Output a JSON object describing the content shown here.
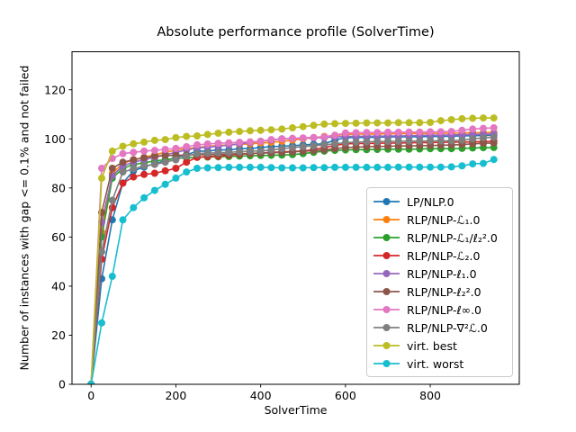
{
  "title": "Absolute performance profile (SolverTime)",
  "xlabel": "SolverTime",
  "ylabel": "Number of instances with gap <= 0.1% and not failed",
  "chart_data": {
    "type": "line",
    "marker": "circle",
    "grid": false,
    "legend_position": "lower right",
    "xlim": [
      -45,
      1010
    ],
    "ylim": [
      0,
      135.5
    ],
    "x_ticks": [
      0,
      200,
      400,
      600,
      800
    ],
    "y_ticks": [
      0,
      20,
      40,
      60,
      80,
      100,
      120
    ],
    "x": [
      0,
      25,
      50,
      75,
      100,
      125,
      150,
      175,
      200,
      225,
      250,
      275,
      300,
      325,
      350,
      375,
      400,
      425,
      450,
      475,
      500,
      525,
      550,
      575,
      600,
      625,
      650,
      675,
      700,
      725,
      750,
      775,
      800,
      825,
      850,
      875,
      900,
      925,
      950
    ],
    "series": [
      {
        "name": "LP/NLP.0",
        "color": "#1f77b4",
        "values": [
          0,
          43,
          67,
          82,
          87,
          88.5,
          90,
          91,
          92.5,
          93.5,
          95,
          95,
          95.5,
          95.5,
          96,
          96,
          96.5,
          96.8,
          97,
          97.2,
          97.5,
          97.8,
          98,
          99.5,
          100.5,
          100.6,
          100.6,
          100.7,
          100.8,
          100.8,
          100.9,
          100.9,
          101,
          101,
          101.1,
          101.2,
          101.3,
          101.4,
          101.5
        ]
      },
      {
        "name": "RLP/NLP-ℒ₁.0",
        "color": "#ff7f0e",
        "values": [
          0,
          62,
          86,
          90,
          91.5,
          92.5,
          93.5,
          94.5,
          95.5,
          96,
          96.5,
          97,
          97.3,
          97.6,
          97.8,
          98,
          98.3,
          98.6,
          99,
          99.5,
          100,
          100.5,
          101,
          101.4,
          101.8,
          101.9,
          102,
          102,
          102.1,
          102.1,
          102.2,
          102.2,
          102.2,
          102.3,
          102.3,
          102.4,
          102.5,
          102.5,
          102.6
        ]
      },
      {
        "name": "RLP/NLP-ℒ₁/ℓ₂².0",
        "color": "#2ca02c",
        "values": [
          0,
          60,
          84,
          88,
          89.5,
          90.3,
          91,
          91.5,
          92,
          92.3,
          92.5,
          92.6,
          92.7,
          92.8,
          93,
          93.1,
          93.2,
          93.3,
          93.4,
          93.6,
          94,
          94.5,
          95,
          95.3,
          95.5,
          95.6,
          95.6,
          95.7,
          95.8,
          95.8,
          95.8,
          95.9,
          96,
          96,
          96,
          96.1,
          96.3,
          96.4,
          96.5
        ]
      },
      {
        "name": "RLP/NLP-ℒ₂.0",
        "color": "#d62728",
        "values": [
          0,
          51,
          72,
          82,
          84.5,
          85.5,
          86,
          87,
          88,
          90.5,
          92.5,
          92.8,
          93,
          93.4,
          93.7,
          94,
          94.2,
          94.5,
          94.7,
          94.9,
          95,
          95.7,
          96.5,
          97.3,
          98,
          98.1,
          98.1,
          98.2,
          98.3,
          98.3,
          98.4,
          98.5,
          98.5,
          98.6,
          98.7,
          98.7,
          98.8,
          98.9,
          99
        ]
      },
      {
        "name": "RLP/NLP-ℓ₁.0",
        "color": "#9467bd",
        "values": [
          0,
          66,
          85,
          89,
          90.5,
          91.5,
          92.5,
          93.5,
          94.5,
          95.5,
          96.3,
          96.6,
          97,
          97.5,
          98,
          98.5,
          99,
          99.5,
          100,
          100.2,
          100.3,
          100.4,
          100.5,
          100.8,
          101,
          101,
          101.1,
          101.1,
          101.2,
          101.2,
          101.3,
          101.4,
          101.5,
          101.5,
          101.6,
          101.7,
          101.8,
          101.9,
          102
        ]
      },
      {
        "name": "RLP/NLP-ℓ₂².0",
        "color": "#8c564b",
        "values": [
          0,
          70,
          88,
          90.5,
          91.5,
          92.3,
          93,
          93.2,
          93.3,
          93.4,
          93.5,
          93.6,
          93.7,
          93.8,
          94,
          94.1,
          94.2,
          94.3,
          94.5,
          94.7,
          95,
          95.2,
          95.5,
          96,
          96.5,
          96.6,
          96.8,
          96.9,
          97,
          97.1,
          97.1,
          97.2,
          97.3,
          97.4,
          97.5,
          97.7,
          98,
          98.2,
          98.3
        ]
      },
      {
        "name": "RLP/NLP-ℓ∞.0",
        "color": "#e377c2",
        "values": [
          0,
          88,
          92,
          94,
          94.5,
          95,
          95.3,
          95.7,
          96.1,
          96.8,
          97.6,
          97.9,
          98.2,
          98.4,
          98.6,
          98.8,
          99,
          99.7,
          100,
          100.2,
          100.4,
          100.6,
          100.8,
          101.5,
          102.4,
          102.5,
          102.6,
          102.6,
          102.7,
          102.7,
          102.8,
          102.8,
          102.9,
          102.9,
          103,
          103.5,
          104,
          104.3,
          104.5
        ]
      },
      {
        "name": "RLP/NLP-∇²ℒ.0",
        "color": "#7f7f7f",
        "values": [
          0,
          54,
          75,
          86.5,
          87.8,
          89,
          89.6,
          90.5,
          91.5,
          93,
          94,
          94.2,
          94.3,
          94.5,
          94.8,
          95,
          95.1,
          95.5,
          96,
          96.4,
          96.8,
          97.2,
          97.6,
          98,
          98.5,
          98.7,
          98.8,
          98.9,
          99,
          99,
          99.1,
          99.1,
          99.2,
          99.2,
          99.2,
          99.5,
          100,
          100.4,
          100.7
        ]
      },
      {
        "name": "virt. best",
        "color": "#bcbd22",
        "values": [
          0,
          84,
          95,
          97,
          98,
          98.7,
          99.4,
          99.7,
          100.5,
          101,
          101.2,
          101.8,
          102.3,
          102.7,
          103,
          103.3,
          103.5,
          103.7,
          104,
          104.5,
          105,
          105.5,
          106,
          106.2,
          106.3,
          106.4,
          106.5,
          106.5,
          106.5,
          106.6,
          106.6,
          106.6,
          106.7,
          107.4,
          107.8,
          108.2,
          108.4,
          108.5,
          108.5
        ]
      },
      {
        "name": "virt. worst",
        "color": "#17becf",
        "values": [
          0,
          25,
          44,
          67,
          72,
          76,
          79,
          81.5,
          84,
          86.5,
          88,
          88.2,
          88.3,
          88.4,
          88.4,
          88.4,
          88.4,
          88.3,
          88.2,
          88.2,
          88.2,
          88.3,
          88.3,
          88.4,
          88.4,
          88.4,
          88.4,
          88.4,
          88.4,
          88.5,
          88.5,
          88.5,
          88.5,
          88.5,
          88.6,
          89,
          89.8,
          90,
          91.6
        ]
      }
    ]
  }
}
